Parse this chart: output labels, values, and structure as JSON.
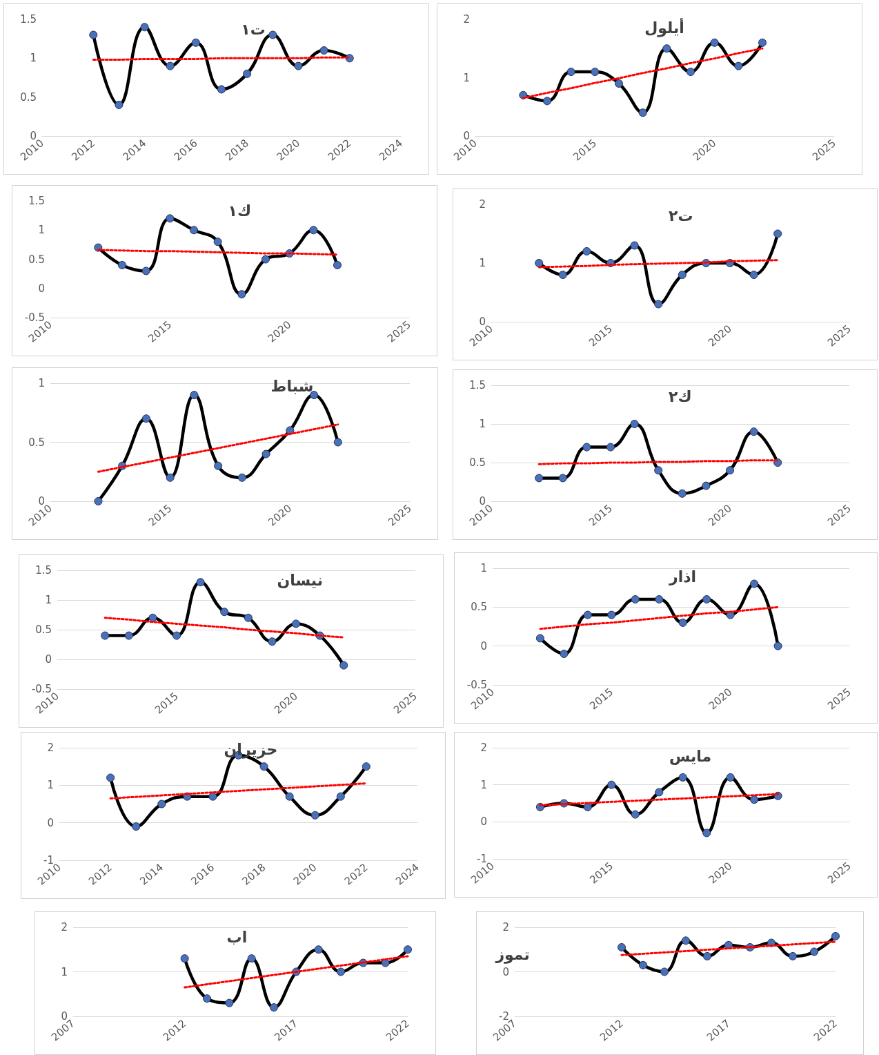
{
  "chart_data": [
    {
      "type": "line",
      "title": "ت١",
      "x": [
        2012,
        2013,
        2014,
        2015,
        2016,
        2017,
        2018,
        2019,
        2020,
        2021,
        2022
      ],
      "xlim": [
        2010,
        2024
      ],
      "xticks": [
        2010,
        2012,
        2014,
        2016,
        2018,
        2020,
        2022,
        2024
      ],
      "ylim": [
        0,
        1.5
      ],
      "yticks": [
        0,
        0.5,
        1,
        1.5
      ],
      "grid": false,
      "marker": "circle",
      "series": [
        {
          "color": "#000000",
          "values": [
            1.3,
            0.4,
            1.4,
            0.9,
            1.2,
            0.6,
            0.8,
            1.3,
            0.9,
            1.1,
            1.0
          ]
        },
        {
          "type": "line",
          "color": "#ff0000",
          "line_style": "dotted",
          "marker": "none",
          "values": [
            0.98,
            0.98,
            0.99,
            0.99,
            0.99,
            1.0,
            1.0,
            1.0,
            1.0,
            1.01,
            1.01
          ]
        }
      ]
    },
    {
      "type": "line",
      "title": "أيلول",
      "x": [
        2012,
        2013,
        2014,
        2015,
        2016,
        2017,
        2018,
        2019,
        2020,
        2021,
        2022
      ],
      "xlim": [
        2010,
        2025
      ],
      "xticks": [
        2010,
        2015,
        2020,
        2025
      ],
      "ylim": [
        0,
        2
      ],
      "yticks": [
        0,
        1,
        2
      ],
      "grid": false,
      "marker": "circle",
      "series": [
        {
          "color": "#000000",
          "values": [
            0.7,
            0.6,
            1.1,
            1.1,
            0.9,
            0.4,
            1.5,
            1.1,
            1.6,
            1.2,
            1.6
          ]
        },
        {
          "type": "line",
          "color": "#ff0000",
          "line_style": "dotted",
          "marker": "none",
          "values": [
            0.65,
            0.74,
            0.82,
            0.91,
            0.99,
            1.08,
            1.16,
            1.25,
            1.33,
            1.42,
            1.5
          ]
        }
      ]
    },
    {
      "type": "line",
      "title": "ك١",
      "x": [
        2012,
        2013,
        2014,
        2015,
        2016,
        2017,
        2018,
        2019,
        2020,
        2021,
        2022
      ],
      "xlim": [
        2010,
        2025
      ],
      "xticks": [
        2010,
        2015,
        2020,
        2025
      ],
      "ylim": [
        -0.5,
        1.5
      ],
      "yticks": [
        -0.5,
        0,
        0.5,
        1,
        1.5
      ],
      "grid": false,
      "marker": "circle",
      "series": [
        {
          "color": "#000000",
          "values": [
            0.7,
            0.4,
            0.3,
            1.2,
            1.0,
            0.8,
            -0.1,
            0.5,
            0.6,
            1.0,
            0.4
          ]
        },
        {
          "type": "line",
          "color": "#ff0000",
          "line_style": "dotted",
          "marker": "none",
          "values": [
            0.66,
            0.65,
            0.64,
            0.64,
            0.63,
            0.62,
            0.61,
            0.6,
            0.6,
            0.59,
            0.58
          ]
        }
      ]
    },
    {
      "type": "line",
      "title": "ت٢",
      "x": [
        2012,
        2013,
        2014,
        2015,
        2016,
        2017,
        2018,
        2019,
        2020,
        2021,
        2022
      ],
      "xlim": [
        2010,
        2025
      ],
      "xticks": [
        2010,
        2015,
        2020,
        2025
      ],
      "ylim": [
        0,
        2
      ],
      "yticks": [
        0,
        1,
        2
      ],
      "grid": false,
      "marker": "circle",
      "series": [
        {
          "color": "#000000",
          "values": [
            1.0,
            0.8,
            1.2,
            1.0,
            1.3,
            0.3,
            0.8,
            1.0,
            1.0,
            0.8,
            1.5
          ]
        },
        {
          "type": "line",
          "color": "#ff0000",
          "line_style": "dotted",
          "marker": "none",
          "values": [
            0.93,
            0.94,
            0.95,
            0.97,
            0.98,
            0.99,
            1.0,
            1.01,
            1.03,
            1.04,
            1.05
          ]
        }
      ]
    },
    {
      "type": "line",
      "title": "شباط",
      "x": [
        2012,
        2013,
        2014,
        2015,
        2016,
        2017,
        2018,
        2019,
        2020,
        2021,
        2022
      ],
      "xlim": [
        2010,
        2025
      ],
      "xticks": [
        2010,
        2015,
        2020,
        2025
      ],
      "ylim": [
        0,
        1
      ],
      "yticks": [
        0,
        0.5,
        1
      ],
      "grid": "y",
      "marker": "circle",
      "series": [
        {
          "color": "#000000",
          "values": [
            0,
            0.3,
            0.7,
            0.2,
            0.9,
            0.3,
            0.2,
            0.4,
            0.6,
            0.9,
            0.5
          ]
        },
        {
          "type": "line",
          "color": "#ff0000",
          "line_style": "dotted",
          "marker": "none",
          "values": [
            0.25,
            0.29,
            0.33,
            0.37,
            0.41,
            0.45,
            0.49,
            0.53,
            0.57,
            0.61,
            0.65
          ]
        }
      ]
    },
    {
      "type": "line",
      "title": "ك٢",
      "x": [
        2012,
        2013,
        2014,
        2015,
        2016,
        2017,
        2018,
        2019,
        2020,
        2021,
        2022
      ],
      "xlim": [
        2010,
        2025
      ],
      "xticks": [
        2010,
        2015,
        2020,
        2025
      ],
      "ylim": [
        0,
        1.5
      ],
      "yticks": [
        0,
        0.5,
        1,
        1.5
      ],
      "grid": "y",
      "marker": "circle",
      "series": [
        {
          "color": "#000000",
          "values": [
            0.3,
            0.3,
            0.7,
            0.7,
            1.0,
            0.4,
            0.1,
            0.2,
            0.4,
            0.9,
            0.5
          ]
        },
        {
          "type": "line",
          "color": "#ff0000",
          "line_style": "dotted",
          "marker": "none",
          "values": [
            0.48,
            0.49,
            0.49,
            0.5,
            0.5,
            0.51,
            0.51,
            0.52,
            0.52,
            0.53,
            0.53
          ]
        }
      ]
    },
    {
      "type": "line",
      "title": "نيسان",
      "x": [
        2012,
        2013,
        2014,
        2015,
        2016,
        2017,
        2018,
        2019,
        2020,
        2021,
        2022
      ],
      "xlim": [
        2010,
        2025
      ],
      "xticks": [
        2010,
        2015,
        2020,
        2025
      ],
      "ylim": [
        -0.5,
        1.5
      ],
      "yticks": [
        -0.5,
        0,
        0.5,
        1,
        1.5
      ],
      "grid": "y",
      "marker": "circle",
      "series": [
        {
          "color": "#000000",
          "values": [
            0.4,
            0.4,
            0.7,
            0.4,
            1.3,
            0.8,
            0.7,
            0.3,
            0.6,
            0.4,
            -0.1
          ]
        },
        {
          "type": "line",
          "color": "#ff0000",
          "line_style": "dotted",
          "marker": "none",
          "values": [
            0.7,
            0.67,
            0.63,
            0.6,
            0.57,
            0.54,
            0.5,
            0.47,
            0.44,
            0.4,
            0.37
          ]
        }
      ]
    },
    {
      "type": "line",
      "title": "اذار",
      "x": [
        2012,
        2013,
        2014,
        2015,
        2016,
        2017,
        2018,
        2019,
        2020,
        2021,
        2022
      ],
      "xlim": [
        2010,
        2025
      ],
      "xticks": [
        2010,
        2015,
        2020,
        2025
      ],
      "ylim": [
        -0.5,
        1
      ],
      "yticks": [
        -0.5,
        0,
        0.5,
        1
      ],
      "grid": "y",
      "marker": "circle",
      "series": [
        {
          "color": "#000000",
          "values": [
            0.1,
            -0.1,
            0.4,
            0.4,
            0.6,
            0.6,
            0.3,
            0.6,
            0.4,
            0.8,
            0
          ]
        },
        {
          "type": "line",
          "color": "#ff0000",
          "line_style": "dotted",
          "marker": "none",
          "values": [
            0.22,
            0.25,
            0.28,
            0.3,
            0.33,
            0.36,
            0.39,
            0.42,
            0.44,
            0.47,
            0.5
          ]
        }
      ]
    },
    {
      "type": "line",
      "title": "حزيران",
      "x": [
        2012,
        2013,
        2014,
        2015,
        2016,
        2017,
        2018,
        2019,
        2020,
        2021,
        2022
      ],
      "xlim": [
        2010,
        2024
      ],
      "xticks": [
        2010,
        2012,
        2014,
        2016,
        2018,
        2020,
        2022,
        2024
      ],
      "ylim": [
        -1,
        2
      ],
      "yticks": [
        -1,
        0,
        1,
        2
      ],
      "grid": "y",
      "marker": "circle",
      "series": [
        {
          "color": "#000000",
          "values": [
            1.2,
            -0.1,
            0.5,
            0.7,
            0.7,
            1.8,
            1.5,
            0.7,
            0.2,
            0.7,
            1.5
          ]
        },
        {
          "type": "line",
          "color": "#ff0000",
          "line_style": "dotted",
          "marker": "none",
          "values": [
            0.65,
            0.69,
            0.73,
            0.77,
            0.81,
            0.85,
            0.89,
            0.93,
            0.97,
            1.01,
            1.05
          ]
        }
      ]
    },
    {
      "type": "line",
      "title": "مايس",
      "x": [
        2012,
        2013,
        2014,
        2015,
        2016,
        2017,
        2018,
        2019,
        2020,
        2021,
        2022
      ],
      "xlim": [
        2010,
        2025
      ],
      "xticks": [
        2010,
        2015,
        2020,
        2025
      ],
      "ylim": [
        -1,
        2
      ],
      "yticks": [
        -1,
        0,
        1,
        2
      ],
      "grid": "y",
      "marker": "circle",
      "series": [
        {
          "color": "#000000",
          "values": [
            0.4,
            0.5,
            0.4,
            1.0,
            0.2,
            0.8,
            1.2,
            -0.3,
            1.2,
            0.6,
            0.7
          ]
        },
        {
          "type": "line",
          "color": "#ff0000",
          "line_style": "dotted",
          "marker": "none",
          "values": [
            0.45,
            0.48,
            0.51,
            0.54,
            0.57,
            0.6,
            0.63,
            0.66,
            0.69,
            0.72,
            0.75
          ]
        }
      ]
    },
    {
      "type": "line",
      "title": "اب",
      "x": [
        2012,
        2013,
        2014,
        2015,
        2016,
        2017,
        2018,
        2019,
        2020,
        2021,
        2022
      ],
      "xlim": [
        2007,
        2022
      ],
      "xticks": [
        2007,
        2012,
        2017,
        2022
      ],
      "ylim": [
        0,
        2
      ],
      "yticks": [
        0,
        1,
        2
      ],
      "grid": "y",
      "marker": "circle",
      "series": [
        {
          "color": "#000000",
          "values": [
            1.3,
            0.4,
            0.3,
            1.3,
            0.2,
            1.0,
            1.5,
            1.0,
            1.2,
            1.2,
            1.5
          ]
        },
        {
          "type": "line",
          "color": "#ff0000",
          "line_style": "dotted",
          "marker": "none",
          "values": [
            0.65,
            0.72,
            0.79,
            0.86,
            0.93,
            1.0,
            1.07,
            1.14,
            1.21,
            1.28,
            1.35
          ]
        }
      ]
    },
    {
      "type": "line",
      "title": "تموز",
      "x": [
        2012,
        2013,
        2014,
        2015,
        2016,
        2017,
        2018,
        2019,
        2020,
        2021,
        2022
      ],
      "xlim": [
        2007,
        2022
      ],
      "xticks": [
        2007,
        2012,
        2017,
        2022
      ],
      "ylim": [
        -2,
        2
      ],
      "yticks": [
        -2,
        0,
        2
      ],
      "grid": "y",
      "marker": "circle",
      "series": [
        {
          "color": "#000000",
          "values": [
            1.1,
            0.3,
            0,
            1.4,
            0.7,
            1.2,
            1.1,
            1.3,
            0.7,
            0.9,
            1.6
          ]
        },
        {
          "type": "line",
          "color": "#ff0000",
          "line_style": "dotted",
          "marker": "none",
          "values": [
            0.75,
            0.81,
            0.87,
            0.93,
            0.99,
            1.05,
            1.11,
            1.17,
            1.23,
            1.29,
            1.35
          ]
        }
      ]
    }
  ]
}
